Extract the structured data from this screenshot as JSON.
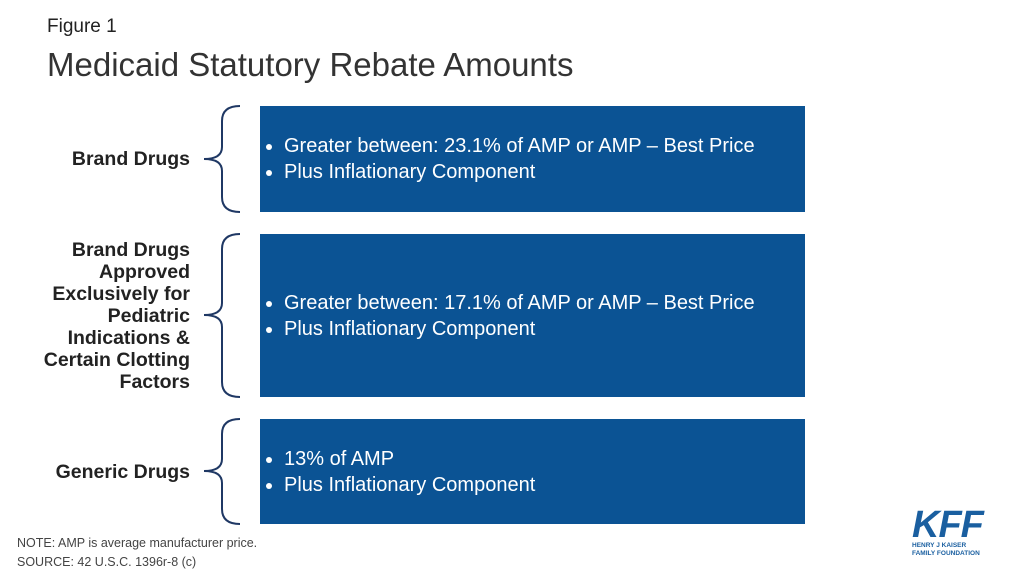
{
  "header": {
    "figure": "Figure 1",
    "title": "Medicaid Statutory Rebate Amounts"
  },
  "rows": [
    {
      "label": [
        "Brand Drugs"
      ],
      "bullets": [
        "Greater between: 23.1% of AMP or AMP – Best Price",
        "Plus Inflationary Component"
      ]
    },
    {
      "label": [
        "Brand Drugs",
        "Approved",
        "Exclusively for",
        "Pediatric",
        "Indications &",
        "Certain Clotting",
        "Factors"
      ],
      "bullets": [
        "Greater between: 17.1% of AMP or AMP – Best Price",
        "Plus Inflationary Component"
      ]
    },
    {
      "label": [
        "Generic Drugs"
      ],
      "bullets": [
        "13% of AMP",
        "Plus Inflationary Component"
      ]
    }
  ],
  "footer": {
    "note": "NOTE: AMP is average manufacturer  price.",
    "source": "SOURCE: 42 U.S.C. 1396r-8 (c)"
  },
  "logo": {
    "mark": "KFF",
    "line1": "HENRY J KAISER",
    "line2": "FAMILY FOUNDATION"
  }
}
